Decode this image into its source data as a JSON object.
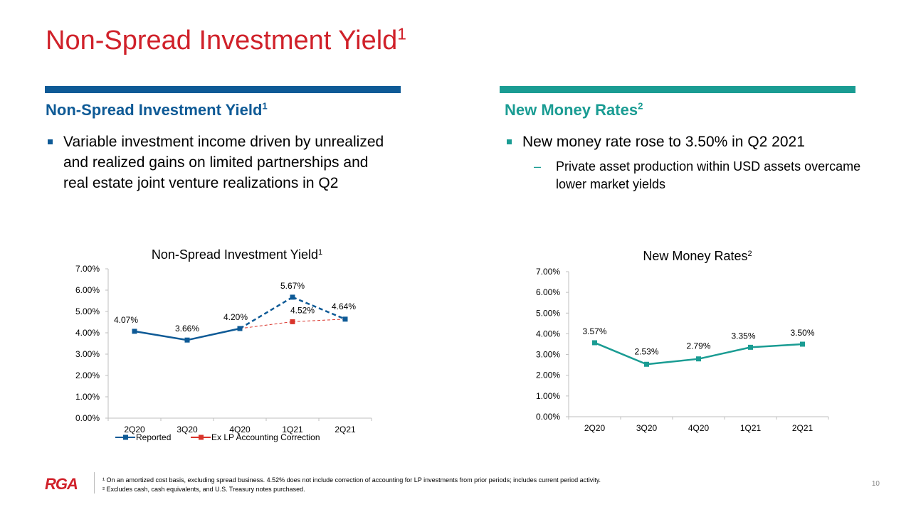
{
  "page": {
    "title": "Non-Spread Investment Yield",
    "title_sup": "1",
    "page_number": "10",
    "logo_text": "RGA"
  },
  "left": {
    "heading": "Non-Spread Investment Yield",
    "heading_sup": "1",
    "bullet": "Variable investment income driven by unrealized and realized gains on limited partnerships and real estate joint venture realizations in Q2"
  },
  "right": {
    "heading": "New Money Rates",
    "heading_sup": "2",
    "bullet": "New money rate rose to 3.50% in Q2 2021",
    "sub_dash": "–",
    "sub_bullet": "Private asset production within USD assets overcame lower market yields"
  },
  "footnotes": {
    "f1": "¹ On an amortized cost basis, excluding spread business. 4.52% does not include correction of accounting for LP investments from prior periods; includes current period activity.",
    "f2": "² Excludes cash, cash equivalents, and U.S. Treasury notes purchased."
  },
  "colors": {
    "brand_red": "#d0212a",
    "blue": "#0e5a96",
    "teal": "#1a9c93",
    "correction_red": "#d9342b"
  },
  "chart_data": [
    {
      "type": "line",
      "title": "Non-Spread  Investment  Yield",
      "title_sup": "1",
      "categories": [
        "2Q20",
        "3Q20",
        "4Q20",
        "1Q21",
        "2Q21"
      ],
      "ylim": [
        0,
        7
      ],
      "yticks": [
        "0.00%",
        "1.00%",
        "2.00%",
        "3.00%",
        "4.00%",
        "5.00%",
        "6.00%",
        "7.00%"
      ],
      "grid": false,
      "legend": "bottom",
      "series": [
        {
          "name": "Reported",
          "values": [
            4.07,
            3.66,
            4.2,
            5.67,
            4.64
          ],
          "labels": [
            "4.07%",
            "3.66%",
            "4.20%",
            "5.67%",
            "4.64%"
          ],
          "color": "#0e5a96",
          "style": "solid-then-dashed"
        },
        {
          "name": "Ex LP Accounting Correction",
          "values": [
            null,
            null,
            4.2,
            4.52,
            4.64
          ],
          "labels": [
            "",
            "",
            "",
            "4.52%",
            ""
          ],
          "color": "#d9342b",
          "style": "dashed"
        }
      ]
    },
    {
      "type": "line",
      "title": "New Money Rates",
      "title_sup": "2",
      "categories": [
        "2Q20",
        "3Q20",
        "4Q20",
        "1Q21",
        "2Q21"
      ],
      "ylim": [
        0,
        7
      ],
      "yticks": [
        "0.00%",
        "1.00%",
        "2.00%",
        "3.00%",
        "4.00%",
        "5.00%",
        "6.00%",
        "7.00%"
      ],
      "grid": false,
      "legend": "none",
      "series": [
        {
          "values": [
            3.57,
            2.53,
            2.79,
            3.35,
            3.5
          ],
          "labels": [
            "3.57%",
            "2.53%",
            "2.79%",
            "3.35%",
            "3.50%"
          ],
          "color": "#1a9c93",
          "style": "solid"
        }
      ]
    }
  ]
}
